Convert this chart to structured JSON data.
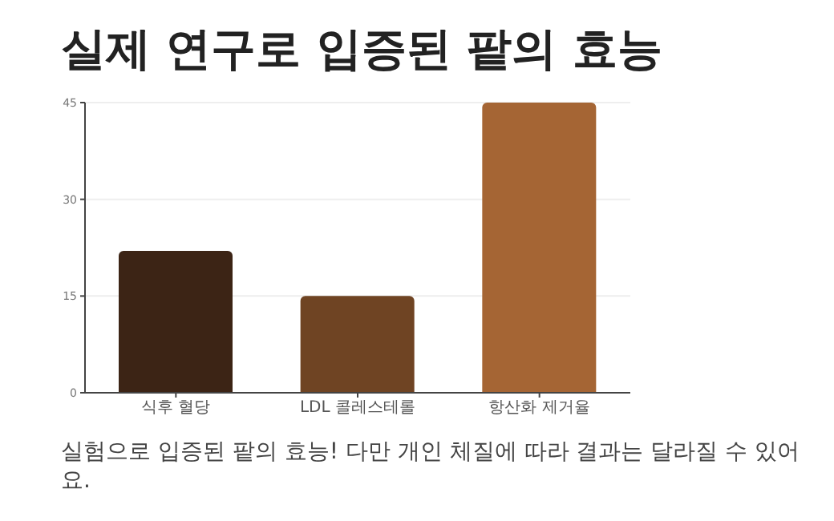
{
  "chart_data": {
    "type": "bar",
    "title": "실제 연구로 입증된 팥의 효능",
    "categories": [
      "식후 혈당",
      "LDL 콜레스테롤",
      "항산화 제거율"
    ],
    "values": [
      22,
      15,
      45
    ],
    "colors": [
      "#3c2415",
      "#6f4423",
      "#a56534"
    ],
    "ylim": [
      0,
      45
    ],
    "yticks": [
      0,
      15,
      30,
      45
    ],
    "grid": "y",
    "annotations": [
      "실험으로 입증된 팥의 효능! 다만 개인 체질에 따라 결과는 달라질 수 있어요."
    ]
  }
}
